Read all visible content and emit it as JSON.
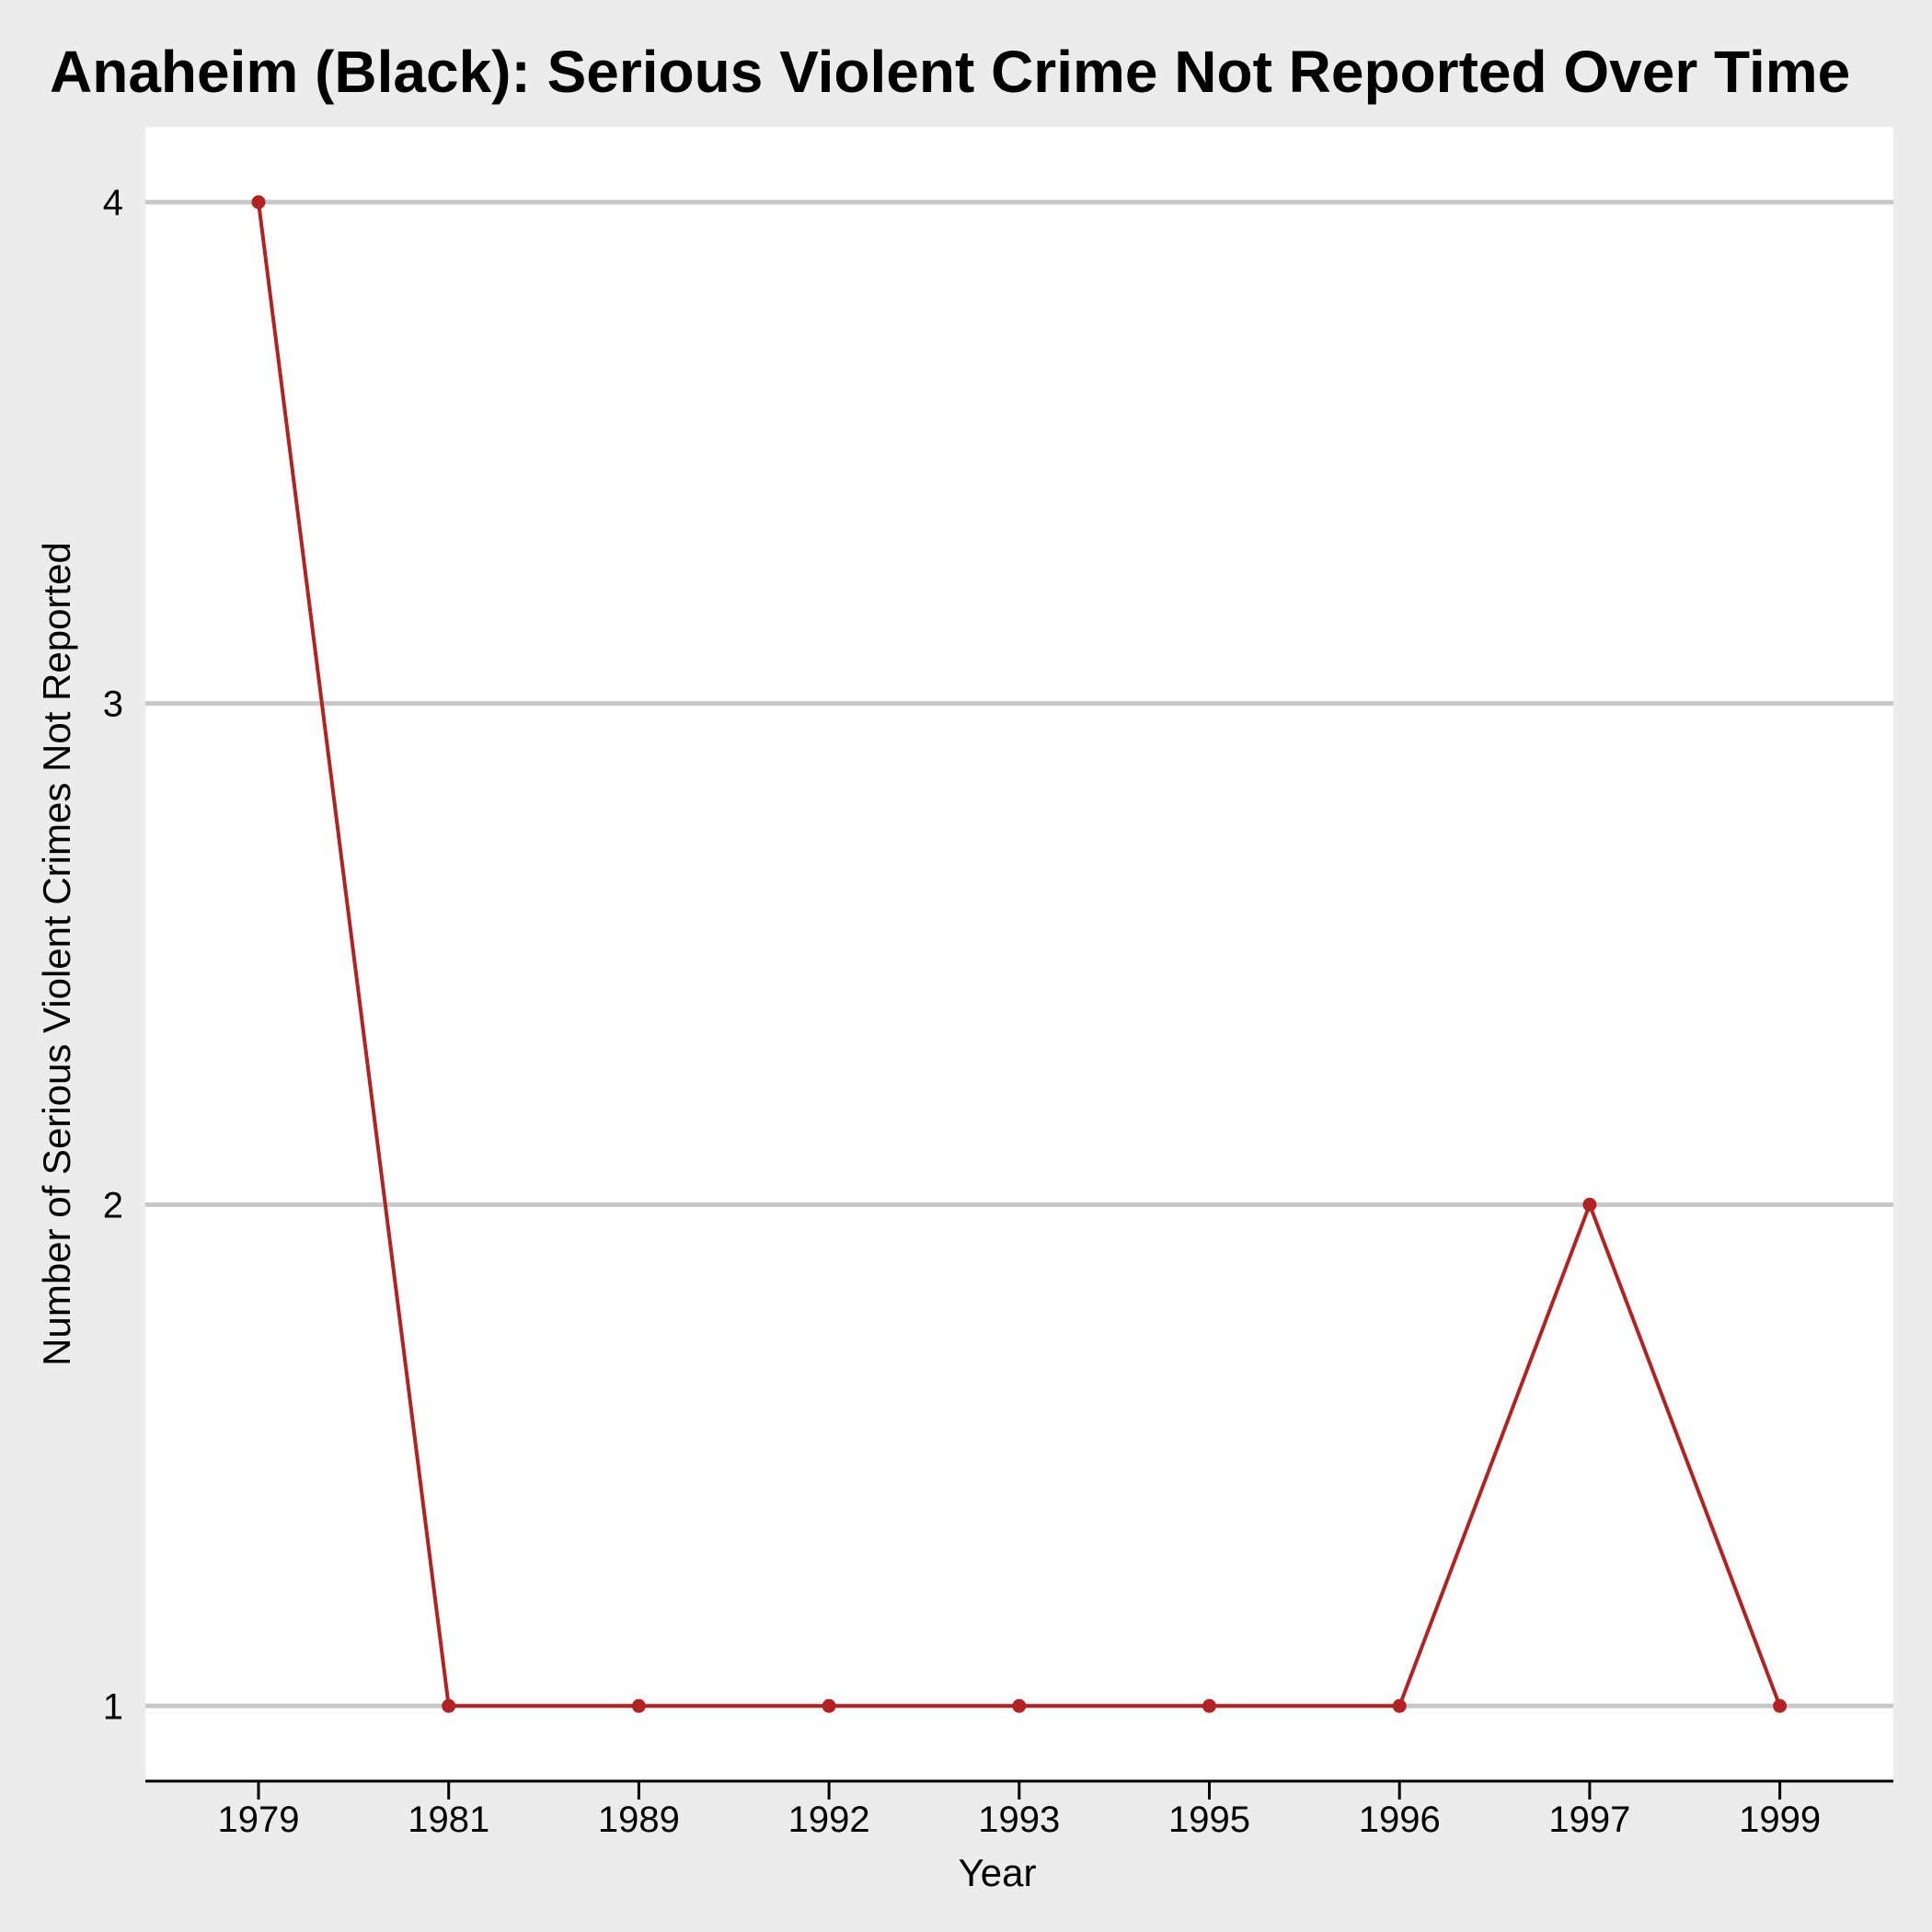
{
  "colors": {
    "background": "#ececec",
    "panel": "#ffffff",
    "gridline": "#c8c8c8",
    "series": "#b22222",
    "axis": "#000000"
  },
  "chart_data": {
    "type": "line",
    "title": "Anaheim (Black): Serious Violent Crime Not Reported Over Time",
    "xlabel": "Year",
    "ylabel": "Number of Serious Violent Crimes Not Reported",
    "categories": [
      "1979",
      "1981",
      "1989",
      "1992",
      "1993",
      "1995",
      "1996",
      "1997",
      "1999"
    ],
    "series": [
      {
        "values": [
          4,
          1,
          1,
          1,
          1,
          1,
          1,
          2,
          1
        ]
      }
    ],
    "yticks": [
      1,
      2,
      3,
      4
    ],
    "ylim": [
      0.85,
      4.15
    ],
    "grid": "horizontal",
    "legend": "none"
  }
}
